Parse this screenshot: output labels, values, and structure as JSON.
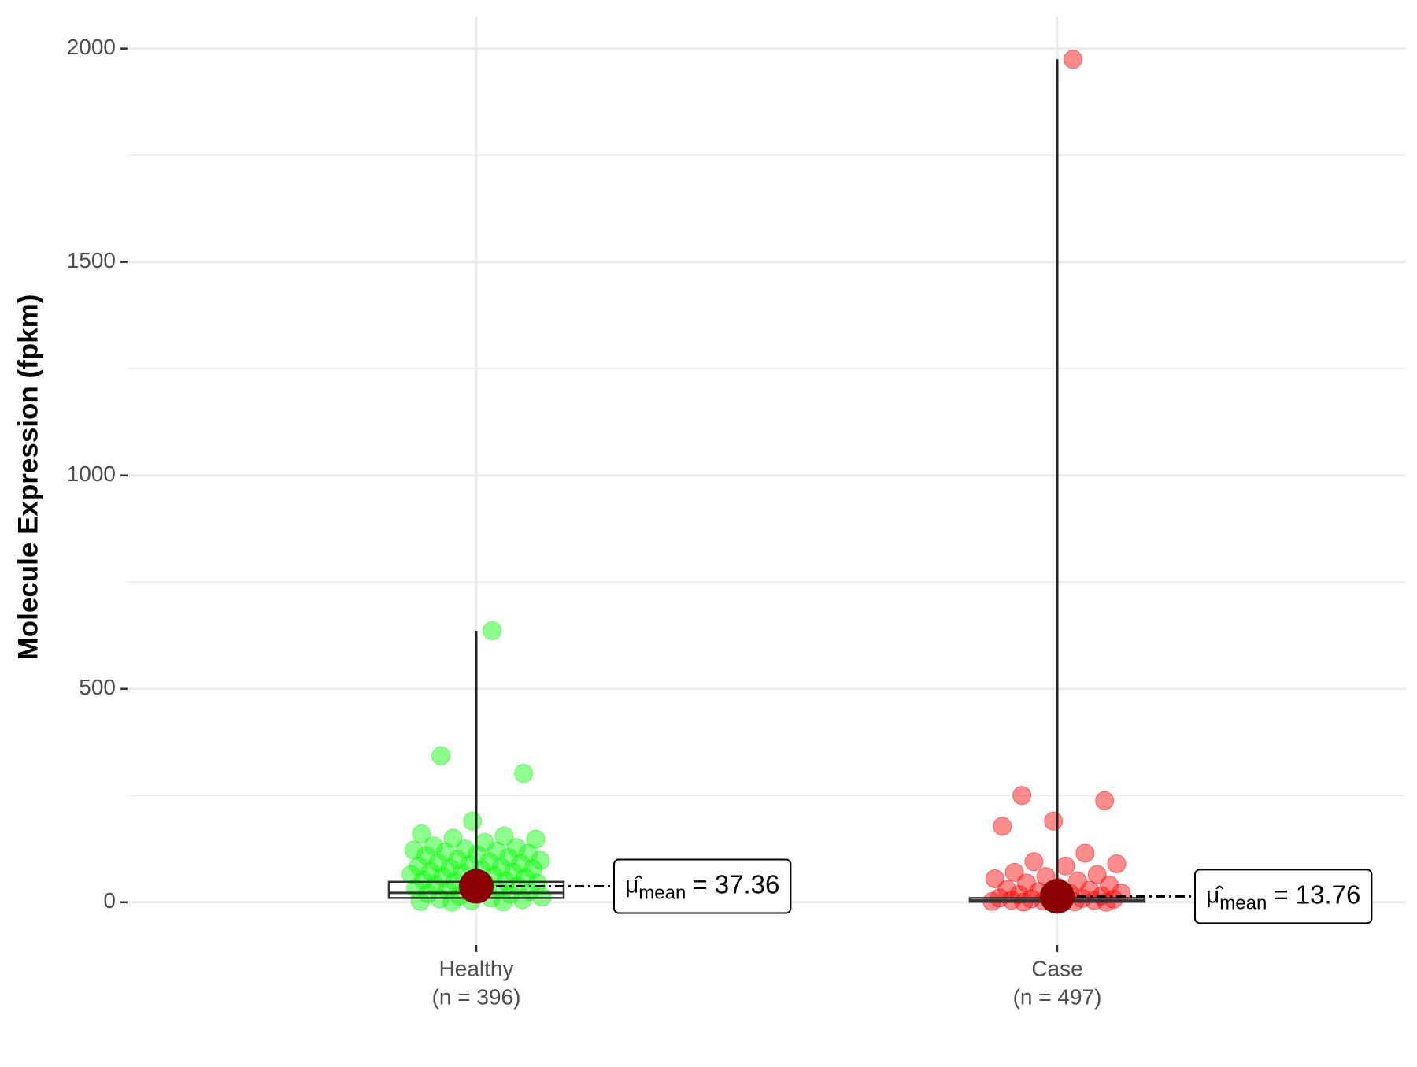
{
  "chart_data": {
    "type": "jitter-box",
    "y_label": "Molecule Expression (fpkm)",
    "categories": [
      "Healthy",
      "Case"
    ],
    "n_labels": [
      "(n = 396)",
      "(n = 497)"
    ],
    "ylim": [
      -100,
      2075
    ],
    "yticks": [
      0,
      500,
      1000,
      1500,
      2000
    ],
    "minor_yticks": [
      250,
      750,
      1250,
      1750
    ],
    "grid": true,
    "mean_symbol": "μ̂",
    "mean_subscript": "mean",
    "mean_color": "#8b0000",
    "series": [
      {
        "name": "Healthy",
        "color": "#00ff00",
        "values": [
          636,
          343,
          302,
          190,
          160,
          155,
          150,
          148,
          140,
          132,
          128,
          125,
          122,
          120,
          118,
          115,
          112,
          110,
          105,
          100,
          98,
          95,
          92,
          90,
          88,
          85,
          82,
          80,
          78,
          75,
          72,
          70,
          68,
          65,
          62,
          60,
          58,
          55,
          52,
          50,
          48,
          45,
          42,
          40,
          38,
          35,
          32,
          30,
          28,
          25,
          22,
          20,
          18,
          15,
          12,
          10,
          8,
          6,
          4,
          2,
          1,
          0
        ],
        "box": {
          "q1": 10,
          "median": 22,
          "q3": 48
        },
        "mean": 37.36,
        "mean_label": "= 37.36"
      },
      {
        "name": "Case",
        "color": "#ff0000",
        "values": [
          1975,
          250,
          238,
          190,
          178,
          115,
          95,
          90,
          85,
          70,
          65,
          60,
          55,
          50,
          45,
          40,
          35,
          30,
          28,
          25,
          22,
          20,
          18,
          15,
          12,
          10,
          9,
          8,
          7,
          6,
          5,
          4,
          3,
          2,
          1,
          0.5,
          0
        ],
        "box": {
          "q1": 1,
          "median": 4,
          "q3": 10
        },
        "mean": 13.76,
        "mean_label": "= 13.76"
      }
    ]
  }
}
